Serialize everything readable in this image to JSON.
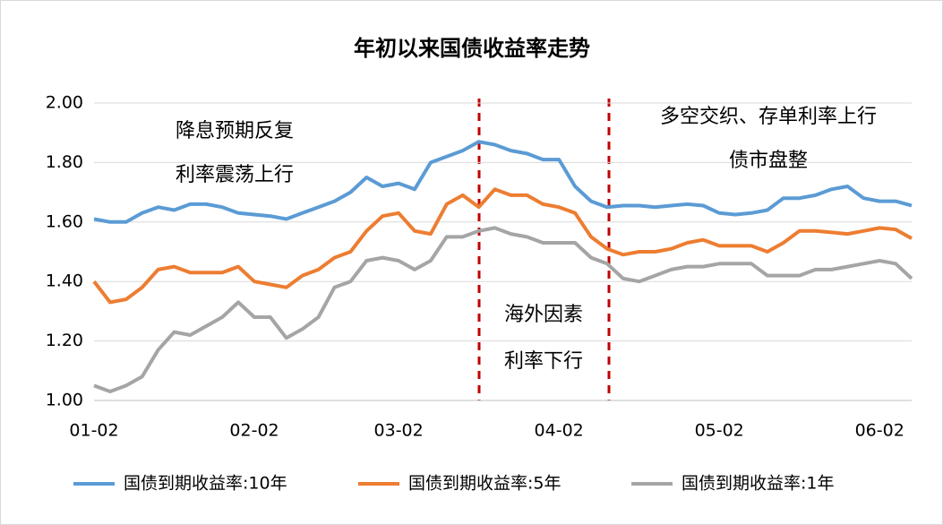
{
  "chart_data": {
    "type": "line",
    "title": "年初以来国债收益率走势",
    "categories": [
      "01-02",
      null,
      null,
      null,
      null,
      null,
      null,
      null,
      null,
      null,
      "02-02",
      null,
      null,
      null,
      null,
      null,
      null,
      null,
      null,
      "03-02",
      null,
      null,
      null,
      null,
      null,
      null,
      null,
      null,
      null,
      "04-02",
      null,
      null,
      null,
      null,
      null,
      null,
      null,
      null,
      null,
      "05-02",
      null,
      null,
      null,
      null,
      null,
      null,
      null,
      null,
      null,
      "06-02",
      null,
      null
    ],
    "series": [
      {
        "name": "国债到期收益率:10年",
        "color": "#5b9bd5",
        "values": [
          1.61,
          1.6,
          1.6,
          1.63,
          1.65,
          1.64,
          1.66,
          1.66,
          1.65,
          1.63,
          1.625,
          1.62,
          1.61,
          1.63,
          1.65,
          1.67,
          1.7,
          1.75,
          1.72,
          1.73,
          1.71,
          1.8,
          1.82,
          1.84,
          1.87,
          1.86,
          1.84,
          1.83,
          1.81,
          1.81,
          1.72,
          1.67,
          1.65,
          1.655,
          1.655,
          1.65,
          1.655,
          1.66,
          1.655,
          1.63,
          1.625,
          1.63,
          1.64,
          1.68,
          1.68,
          1.69,
          1.71,
          1.72,
          1.68,
          1.67,
          1.67,
          1.655
        ]
      },
      {
        "name": "国债到期收益率:5年",
        "color": "#ed7d31",
        "values": [
          1.4,
          1.33,
          1.34,
          1.38,
          1.44,
          1.45,
          1.43,
          1.43,
          1.43,
          1.45,
          1.4,
          1.39,
          1.38,
          1.42,
          1.44,
          1.48,
          1.5,
          1.57,
          1.62,
          1.63,
          1.57,
          1.56,
          1.66,
          1.69,
          1.65,
          1.71,
          1.69,
          1.69,
          1.66,
          1.65,
          1.63,
          1.55,
          1.51,
          1.49,
          1.5,
          1.5,
          1.51,
          1.53,
          1.54,
          1.52,
          1.52,
          1.52,
          1.5,
          1.53,
          1.57,
          1.57,
          1.565,
          1.56,
          1.57,
          1.58,
          1.575,
          1.545
        ]
      },
      {
        "name": "国债到期收益率:1年",
        "color": "#a5a5a5",
        "values": [
          1.05,
          1.03,
          1.05,
          1.08,
          1.17,
          1.23,
          1.22,
          1.25,
          1.28,
          1.33,
          1.28,
          1.28,
          1.21,
          1.24,
          1.28,
          1.38,
          1.4,
          1.47,
          1.48,
          1.47,
          1.44,
          1.47,
          1.55,
          1.55,
          1.57,
          1.58,
          1.56,
          1.55,
          1.53,
          1.53,
          1.53,
          1.48,
          1.46,
          1.41,
          1.4,
          1.42,
          1.44,
          1.45,
          1.45,
          1.46,
          1.46,
          1.46,
          1.42,
          1.42,
          1.42,
          1.44,
          1.44,
          1.45,
          1.46,
          1.47,
          1.46,
          1.41
        ]
      }
    ],
    "ylim": [
      1,
      2
    ],
    "yticks": [
      {
        "value": 1,
        "label": "1.00"
      },
      {
        "value": 1.2,
        "label": "1.20"
      },
      {
        "value": 1.4,
        "label": "1.40"
      },
      {
        "value": 1.6,
        "label": "1.60"
      },
      {
        "value": 1.8,
        "label": "1.80"
      },
      {
        "value": 2,
        "label": "2.00"
      }
    ],
    "grid": true,
    "legend": "bottom",
    "annotations": [
      "降息预期反复",
      "利率震荡上行",
      "海外因素",
      "利率下行",
      "多空交织、存单利率上行",
      "债市盘整"
    ]
  }
}
